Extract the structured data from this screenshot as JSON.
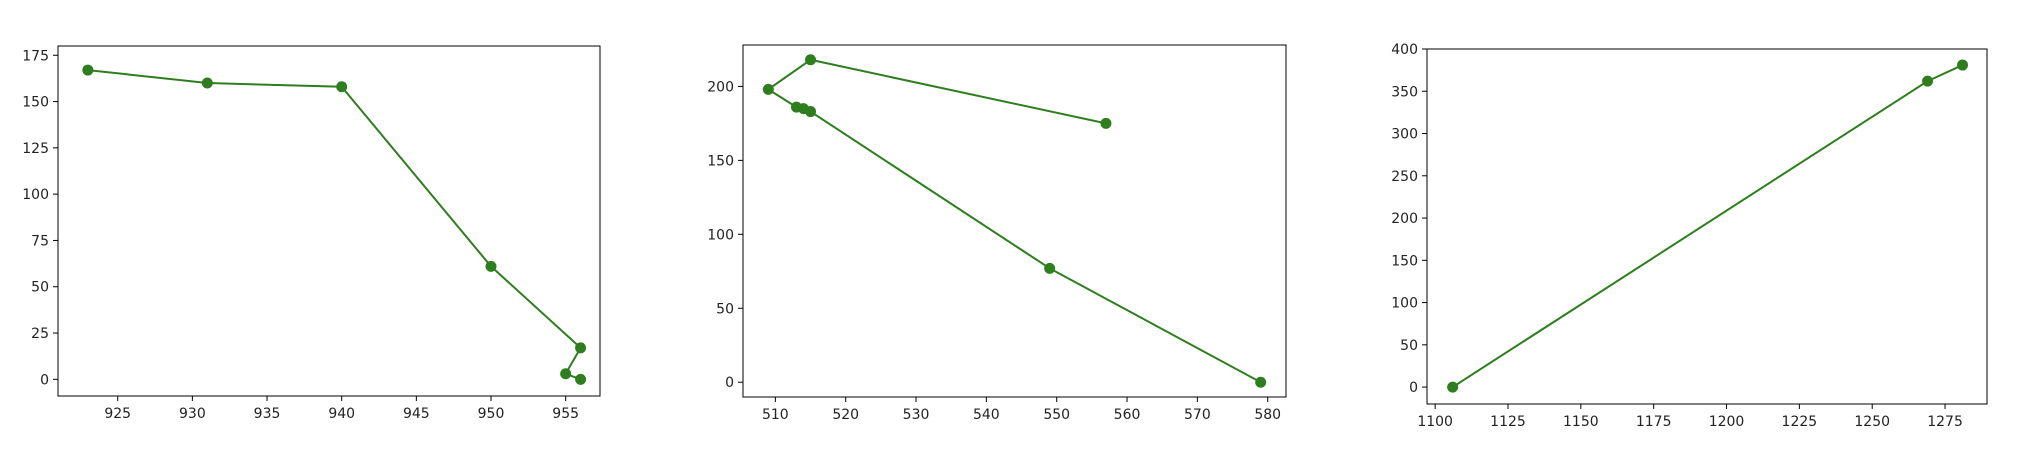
{
  "chart_data": [
    {
      "type": "line",
      "title": "",
      "xlabel": "",
      "ylabel": "",
      "xlim": [
        921.0,
        957.3
      ],
      "ylim": [
        -9,
        180
      ],
      "xticks": [
        925,
        930,
        935,
        940,
        945,
        950,
        955
      ],
      "yticks": [
        0,
        25,
        50,
        75,
        100,
        125,
        150,
        175
      ],
      "grid": false,
      "color": "#2e7d1f",
      "series": [
        {
          "x": [
            923,
            931,
            940,
            950,
            956,
            955,
            956
          ],
          "y": [
            167,
            160,
            158,
            61,
            17,
            3,
            0
          ]
        }
      ]
    },
    {
      "type": "line",
      "title": "",
      "xlabel": "",
      "ylabel": "",
      "xlimit": [
        505.4,
        582.6
      ],
      "ylim": [
        -10,
        228
      ],
      "xticks": [
        510,
        520,
        530,
        540,
        550,
        560,
        570,
        580
      ],
      "yticks": [
        0,
        50,
        100,
        150,
        200
      ],
      "grid": false,
      "color": "#2e7d1f",
      "series": [
        {
          "x": [
            557,
            515,
            509,
            513,
            514,
            515,
            549,
            579
          ],
          "y": [
            175,
            218,
            198,
            186,
            185,
            183,
            77,
            0
          ]
        }
      ]
    },
    {
      "type": "line",
      "title": "",
      "xlabel": "",
      "ylabel": "",
      "xlim": [
        1097.2,
        1289.4
      ],
      "ylim": [
        -20,
        400
      ],
      "xticks": [
        1100,
        1125,
        1150,
        1175,
        1200,
        1225,
        1250,
        1275
      ],
      "yticks": [
        0,
        50,
        100,
        150,
        200,
        250,
        300,
        350,
        400
      ],
      "grid": false,
      "color": "#2e7d1f",
      "series": [
        {
          "x": [
            1106,
            1269,
            1281
          ],
          "y": [
            0,
            362,
            381
          ]
        }
      ]
    }
  ]
}
